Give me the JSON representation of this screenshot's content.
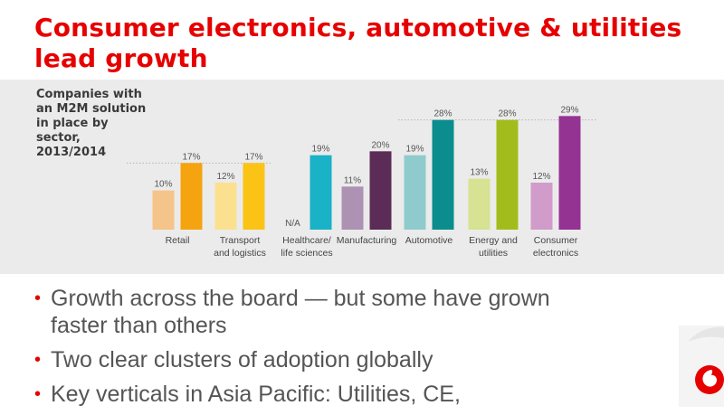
{
  "slide": {
    "title_line1": "Consumer electronics, automotive  & utilities",
    "title_line2": "lead growth",
    "chart_label": [
      "Companies with",
      "an M2M solution",
      "in place by",
      "sector,",
      "2013/2014"
    ]
  },
  "chart_data": {
    "type": "bar",
    "categories": [
      [
        "Retail"
      ],
      [
        "Transport",
        "and logistics"
      ],
      [
        "Healthcare/",
        "life sciences"
      ],
      [
        "Manufacturing"
      ],
      [
        "Automotive"
      ],
      [
        "Energy and",
        "utilities"
      ],
      [
        "Consumer",
        "electronics"
      ]
    ],
    "series": [
      {
        "values": [
          10,
          12,
          null,
          11,
          19,
          13,
          12
        ]
      },
      {
        "values": [
          17,
          17,
          19,
          20,
          28,
          28,
          29
        ]
      }
    ],
    "value_labels": [
      [
        "10%",
        "12%",
        "N/A",
        "11%",
        "19%",
        "13%",
        "12%"
      ],
      [
        "17%",
        "17%",
        "19%",
        "20%",
        "28%",
        "28%",
        "29%"
      ]
    ],
    "colors": [
      [
        "#f5c48a",
        "#f5a30f"
      ],
      [
        "#fbe08f",
        "#fcc317"
      ],
      [
        "#8fd3e0",
        "#19b2c7"
      ],
      [
        "#ad92b3",
        "#5b2c55"
      ],
      [
        "#8fcbcc",
        "#0b8d8e"
      ],
      [
        "#d7e292",
        "#a2bd1b"
      ],
      [
        "#d19bca",
        "#943392"
      ]
    ],
    "ylim": [
      0,
      30
    ],
    "reference_lines": [
      17,
      28
    ]
  },
  "bullets": [
    [
      "Growth across the board — but some have grown",
      "faster than others"
    ],
    [
      "Two clear clusters of adoption globally"
    ],
    [
      "Key verticals in Asia Pacific: Utilities, CE,"
    ]
  ],
  "bullet_glyph": "•",
  "brand": {
    "accent": "#e60000"
  }
}
